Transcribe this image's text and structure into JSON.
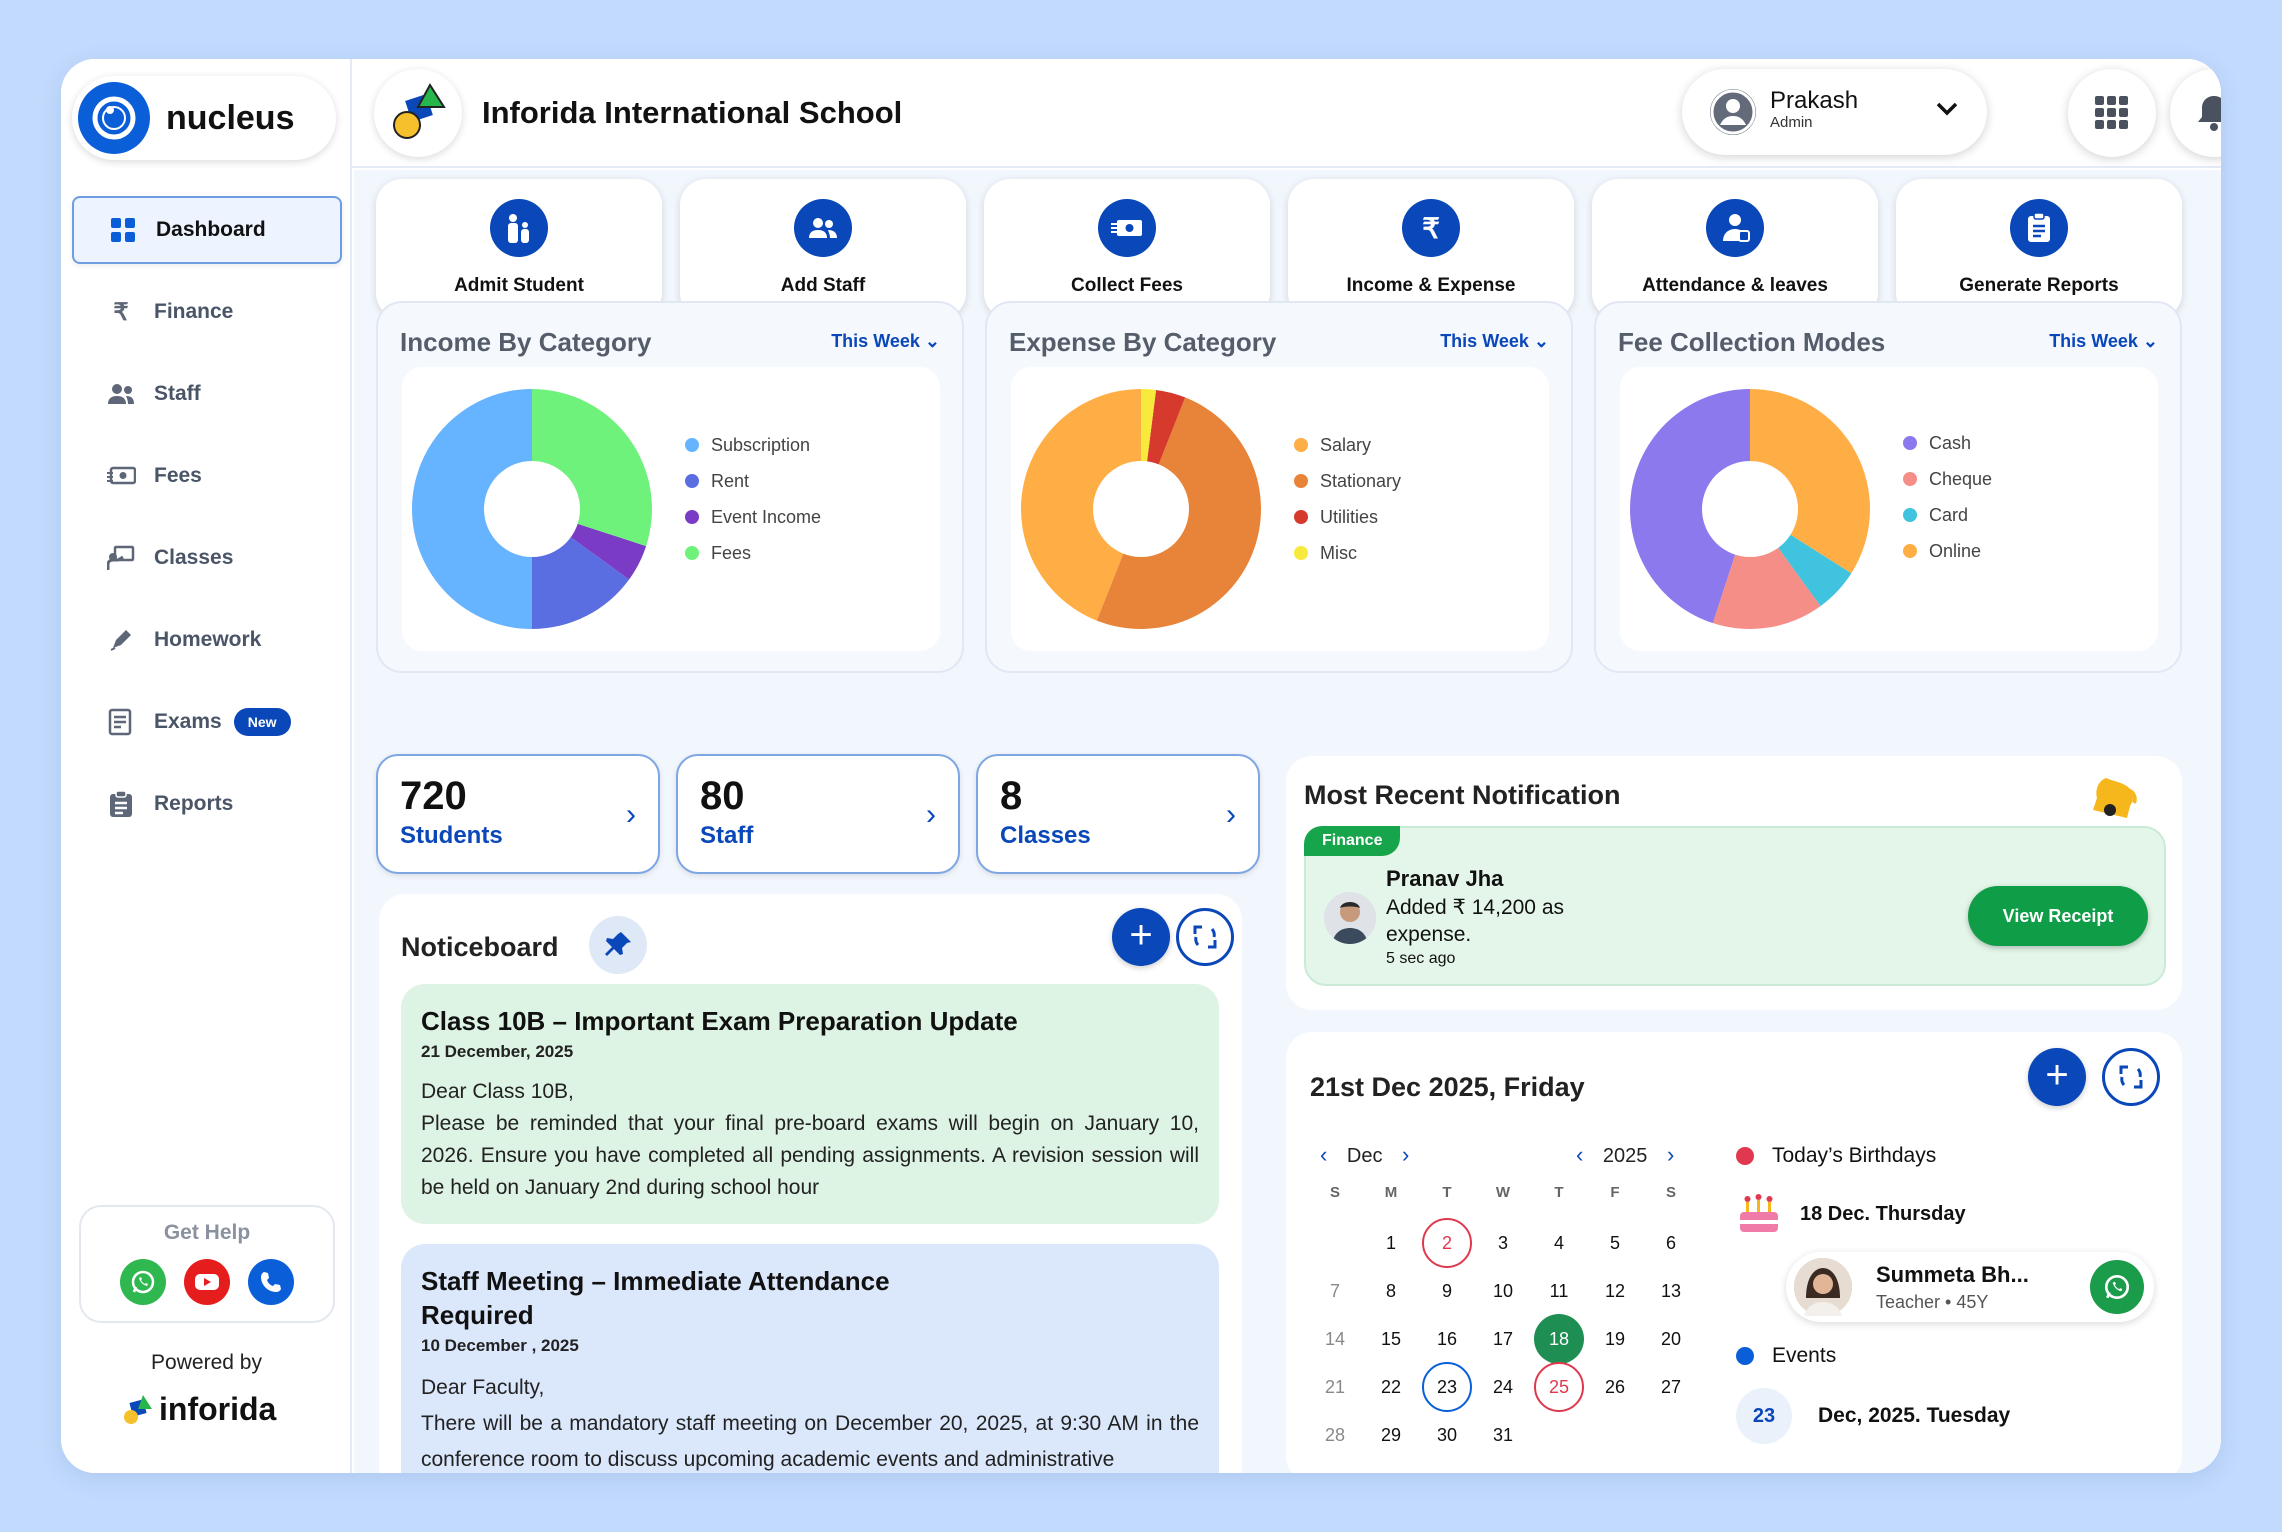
{
  "sidebar": {
    "logo_text": "nucleus",
    "items": [
      {
        "label": "Dashboard",
        "icon": "grid-icon"
      },
      {
        "label": "Finance",
        "icon": "rupee-icon"
      },
      {
        "label": "Staff",
        "icon": "people-icon"
      },
      {
        "label": "Fees",
        "icon": "cash-icon"
      },
      {
        "label": "Classes",
        "icon": "classroom-icon"
      },
      {
        "label": "Homework",
        "icon": "pencil-icon"
      },
      {
        "label": "Exams",
        "icon": "exam-icon",
        "badge": "New"
      },
      {
        "label": "Reports",
        "icon": "clipboard-icon"
      }
    ],
    "help_title": "Get Help",
    "powered_by": "Powered by",
    "brand": "inforida"
  },
  "header": {
    "school_name": "Inforida International School",
    "user_name": "Prakash",
    "user_role": "Admin"
  },
  "quick_actions": [
    {
      "label": "Admit Student",
      "icon": "admit-student-icon"
    },
    {
      "label": "Add Staff",
      "icon": "add-staff-icon"
    },
    {
      "label": "Collect Fees",
      "icon": "collect-fees-icon"
    },
    {
      "label": "Income & Expense",
      "icon": "rupee-icon"
    },
    {
      "label": "Attendance & leaves",
      "icon": "attendance-icon"
    },
    {
      "label": "Generate Reports",
      "icon": "report-icon"
    }
  ],
  "chart_data": [
    {
      "type": "pie",
      "title": "Income By Category",
      "filter": "This Week",
      "categories": [
        "Subscription",
        "Rent",
        "Event Income",
        "Fees"
      ],
      "values": [
        50,
        15,
        5,
        30
      ],
      "colors": [
        "#66b3ff",
        "#5b6ee1",
        "#7a3cc4",
        "#6ef27c"
      ]
    },
    {
      "type": "pie",
      "title": "Expense By Category",
      "filter": "This Week",
      "categories": [
        "Salary",
        "Stationary",
        "Utilities",
        "Misc"
      ],
      "values": [
        44,
        50,
        4,
        2
      ],
      "colors": [
        "#ffad45",
        "#e8843a",
        "#d63a2c",
        "#f7ea3c"
      ]
    },
    {
      "type": "pie",
      "title": "Fee Collection Modes",
      "filter": "This Week",
      "categories": [
        "Cash",
        "Cheque",
        "Card",
        "Online"
      ],
      "values": [
        45,
        15,
        6,
        34
      ],
      "colors": [
        "#8c79ee",
        "#f68e88",
        "#3fc3df",
        "#ffad45"
      ]
    }
  ],
  "stats": [
    {
      "value": "720",
      "label": "Students"
    },
    {
      "value": "80",
      "label": "Staff"
    },
    {
      "value": "8",
      "label": "Classes"
    }
  ],
  "noticeboard": {
    "title": "Noticeboard",
    "notes": [
      {
        "title": "Class 10B – Important Exam Preparation Update",
        "date": "21 December, 2025",
        "greeting": "Dear Class 10B,",
        "body": "Please be reminded that your final pre-board exams will begin on January 10, 2026. Ensure you have completed all pending assignments. A revision session will be held on January 2nd during school hour"
      },
      {
        "title": "Staff Meeting – Immediate Attendance Required",
        "date": "10 December , 2025",
        "greeting": "Dear Faculty,",
        "body": "There will be a mandatory staff meeting on December 20, 2025, at 9:30 AM in the conference room to discuss upcoming academic events and administrative"
      }
    ]
  },
  "notification": {
    "title": "Most Recent Notification",
    "tag": "Finance",
    "person": "Pranav Jha",
    "text": "Added ₹ 14,200 as expense.",
    "time": "5 sec ago",
    "button": "View Receipt"
  },
  "calendar": {
    "title": "21st Dec 2025, Friday",
    "month": "Dec",
    "year": "2025",
    "dow": [
      "S",
      "M",
      "T",
      "W",
      "T",
      "F",
      "S"
    ],
    "birthdays_title": "Today’s Birthdays",
    "birthday_date": "18 Dec. Thursday",
    "person_name": "Summeta Bh...",
    "person_role": "Teacher • 45Y",
    "events_title": "Events",
    "event_day": "23",
    "event_date": "Dec, 2025. Tuesday"
  }
}
